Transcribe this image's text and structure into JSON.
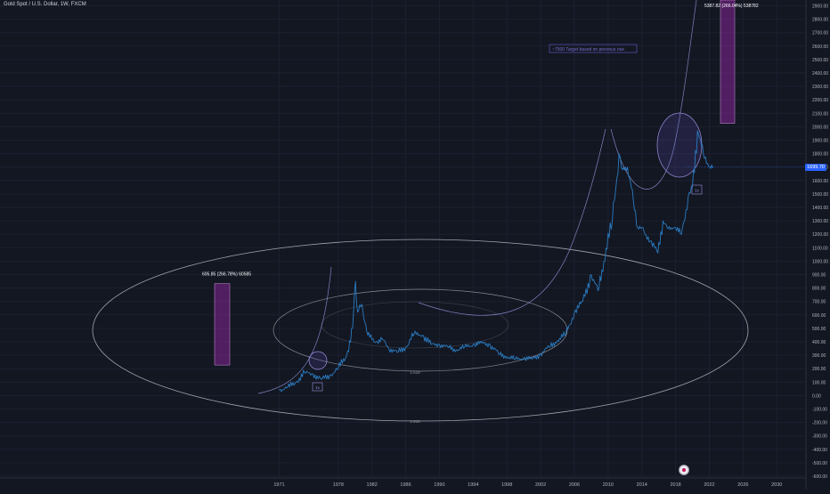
{
  "header": {
    "symbol_title": "Gold Spot / U.S. Dollar, 1W, FXCM"
  },
  "price_scale": {
    "current_price_label": "1699.70",
    "labels": [
      "2900.00",
      "2800.00",
      "2700.00",
      "2600.00",
      "2500.00",
      "2400.00",
      "2300.00",
      "2200.00",
      "2100.00",
      "2000.00",
      "1900.00",
      "1800.00",
      "1700.00",
      "1600.00",
      "1500.00",
      "1400.00",
      "1300.00",
      "1200.00",
      "1100.00",
      "1000.00",
      "900.00",
      "800.00",
      "700.00",
      "600.00",
      "500.00",
      "400.00",
      "300.00",
      "200.00",
      "100.00",
      "0.00",
      "-100.00",
      "-200.00",
      "-300.00",
      "-400.00",
      "-500.00",
      "-600.00"
    ]
  },
  "chart_data": {
    "type": "line",
    "title": "Gold Spot / U.S. Dollar, 1W, FXCM",
    "xlabel": "",
    "ylabel": "",
    "x_ticks": [
      "1971",
      "1978",
      "1982",
      "1986",
      "1990",
      "1994",
      "1998",
      "2002",
      "2006",
      "2010",
      "2014",
      "2018",
      "2022",
      "2026",
      "2030"
    ],
    "x_range": [
      1964,
      2034
    ],
    "ylim": [
      -650,
      2950
    ],
    "grid": true,
    "series": [
      {
        "x": [
          1971,
          1972,
          1973,
          1974,
          1975,
          1976,
          1977,
          1978,
          1979,
          1979.7,
          1980.05,
          1980.3,
          1980.8,
          1981.5,
          1982.5,
          1983.2,
          1984,
          1985,
          1986,
          1987,
          1988,
          1989,
          1990,
          1991,
          1992,
          1993,
          1994,
          1995,
          1996,
          1997,
          1998,
          1999,
          2000,
          2001,
          2002,
          2003,
          2004,
          2005,
          2006,
          2007,
          2008,
          2008.8,
          2009.5,
          2010.5,
          2011.3,
          2011.7,
          2012.3,
          2013,
          2013.5,
          2014,
          2015,
          2015.9,
          2016.5,
          2017,
          2018,
          2018.7,
          2019.5,
          2020,
          2020.6,
          2021.3,
          2022.05,
          2022.5
        ],
        "values": [
          40,
          60,
          100,
          170,
          160,
          120,
          150,
          200,
          300,
          500,
          850,
          620,
          680,
          450,
          400,
          420,
          350,
          320,
          360,
          460,
          450,
          380,
          380,
          360,
          340,
          360,
          380,
          390,
          380,
          310,
          290,
          270,
          280,
          270,
          310,
          360,
          410,
          460,
          620,
          700,
          900,
          780,
          1000,
          1300,
          1800,
          1680,
          1700,
          1450,
          1250,
          1250,
          1150,
          1060,
          1300,
          1250,
          1250,
          1200,
          1480,
          1550,
          1970,
          1800,
          1700,
          1700
        ]
      }
    ],
    "annotations": {
      "measure_left": {
        "label": "605.85 (266.78%) 60585",
        "from": 227,
        "to": 833,
        "x": 1975
      },
      "measure_right": {
        "label": "5387.82 (266.04%) 538782",
        "from": 2025,
        "to": 7412,
        "x": 2027
      },
      "target_note": "~7500 Target based on previous rise",
      "ellipse_outer_label": "1.618",
      "ellipse_inner_label": "1.618",
      "box_label_1": "1x",
      "box_label_2": "1x"
    }
  },
  "colors": {
    "background": "#131722",
    "price_line": "#2a7bc0",
    "ellipse": "#d1d4dc",
    "curve": "#8a8fd0",
    "measure": "#9c27b0",
    "accent": "#2962ff"
  }
}
